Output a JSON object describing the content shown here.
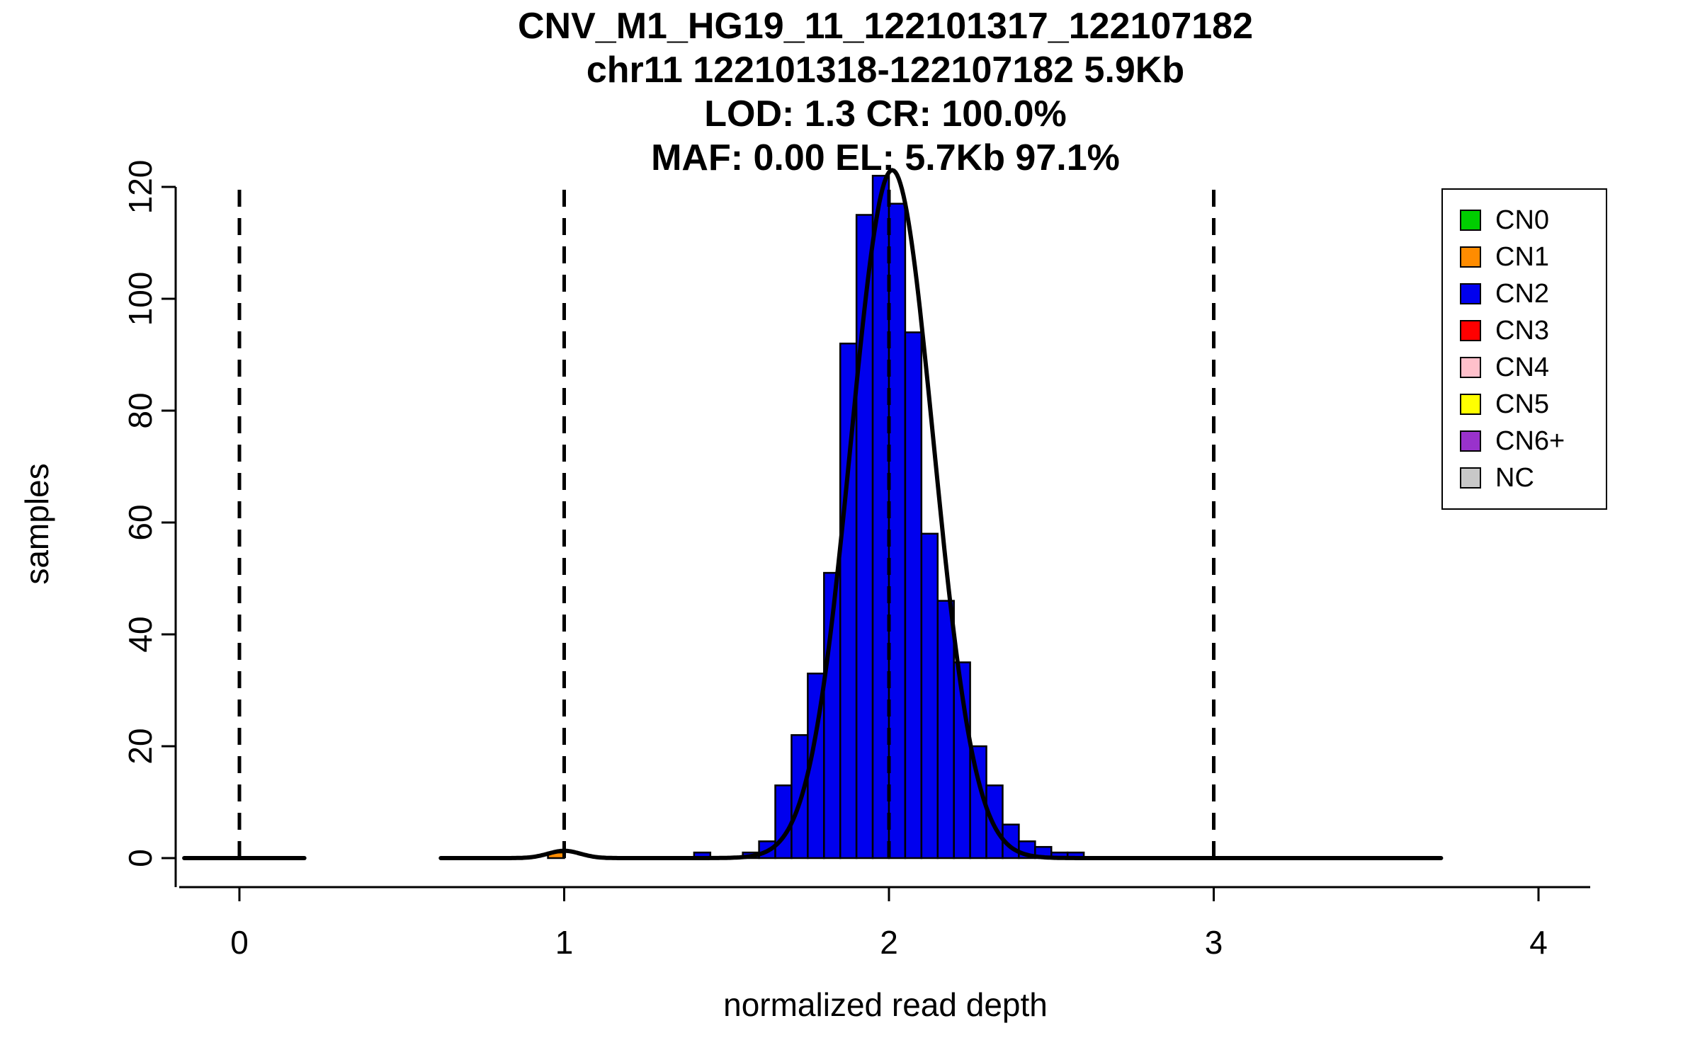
{
  "title": {
    "line1": "CNV_M1_HG19_11_122101317_122107182",
    "line2": "chr11 122101318-122107182 5.9Kb",
    "line3": "LOD: 1.3 CR: 100.0%",
    "line4": "MAF: 0.00 EL: 5.7Kb 97.1%"
  },
  "chart_data": {
    "type": "bar",
    "subtype": "histogram-with-density",
    "title": "CNV_M1_HG19_11_122101317_122107182 | chr11 122101318-122107182 5.9Kb | LOD: 1.3 CR: 100.0% | MAF: 0.00 EL: 5.7Kb 97.1%",
    "xlabel": "normalized read depth",
    "ylabel": "samples",
    "xlim": [
      -0.2,
      4.2
    ],
    "ylim": [
      0,
      123
    ],
    "x_ticks": [
      0,
      1,
      2,
      3,
      4
    ],
    "y_ticks": [
      0,
      20,
      40,
      60,
      80,
      100,
      120
    ],
    "grid": false,
    "legend_position": "top-right",
    "bin_width": 0.05,
    "bars": [
      {
        "x": 0.95,
        "height": 1,
        "color": "#FF8C00"
      },
      {
        "x": 1.4,
        "height": 1
      },
      {
        "x": 1.55,
        "height": 1
      },
      {
        "x": 1.6,
        "height": 3
      },
      {
        "x": 1.65,
        "height": 13
      },
      {
        "x": 1.7,
        "height": 22
      },
      {
        "x": 1.75,
        "height": 33
      },
      {
        "x": 1.8,
        "height": 51
      },
      {
        "x": 1.85,
        "height": 92
      },
      {
        "x": 1.9,
        "height": 115
      },
      {
        "x": 1.95,
        "height": 122
      },
      {
        "x": 2.0,
        "height": 117
      },
      {
        "x": 2.05,
        "height": 94
      },
      {
        "x": 2.1,
        "height": 58
      },
      {
        "x": 2.15,
        "height": 46
      },
      {
        "x": 2.2,
        "height": 35
      },
      {
        "x": 2.25,
        "height": 20
      },
      {
        "x": 2.3,
        "height": 13
      },
      {
        "x": 2.35,
        "height": 6
      },
      {
        "x": 2.4,
        "height": 3
      },
      {
        "x": 2.45,
        "height": 2
      },
      {
        "x": 2.5,
        "height": 1
      },
      {
        "x": 2.55,
        "height": 1
      }
    ],
    "vlines_dashed_x": [
      0,
      1,
      2,
      3
    ],
    "density_curve": {
      "segments": [
        [
          -0.17,
          0.2
        ],
        [
          0.62,
          3.7
        ]
      ],
      "components": [
        {
          "mean": 1.0,
          "sd": 0.05,
          "peak": 1.3
        },
        {
          "mean": 2.01,
          "sd": 0.127,
          "peak": 123
        }
      ]
    },
    "legend": [
      {
        "label": "CN0",
        "color": "#00CD00"
      },
      {
        "label": "CN1",
        "color": "#FF8C00"
      },
      {
        "label": "CN2",
        "color": "#0000EE"
      },
      {
        "label": "CN3",
        "color": "#FF0000"
      },
      {
        "label": "CN4",
        "color": "#FFC0CB"
      },
      {
        "label": "CN5",
        "color": "#FFFF00"
      },
      {
        "label": "CN6+",
        "color": "#9932CC"
      },
      {
        "label": "NC",
        "color": "#C8C8C8"
      }
    ],
    "colors": {
      "bar_fill": "#0000EE",
      "bar_stroke": "#000000",
      "curve": "#000000",
      "axis": "#000000"
    }
  }
}
